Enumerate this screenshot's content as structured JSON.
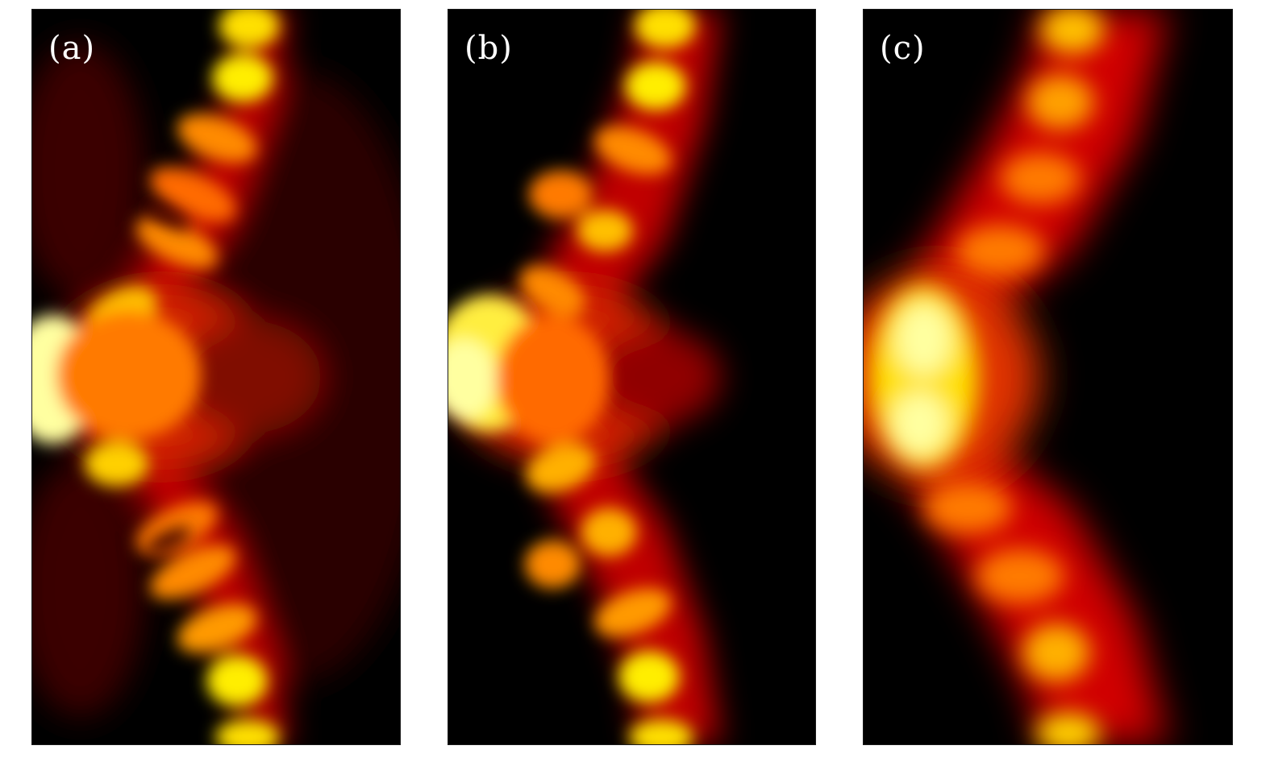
{
  "panels": [
    {
      "label": "(a)"
    },
    {
      "label": "(b)"
    },
    {
      "label": "(c)"
    }
  ],
  "colormap": {
    "name": "hot",
    "stops": [
      "#000000",
      "#5a0000",
      "#d80000",
      "#ff5a00",
      "#ff9a00",
      "#ffe000",
      "#ffffc0"
    ]
  }
}
